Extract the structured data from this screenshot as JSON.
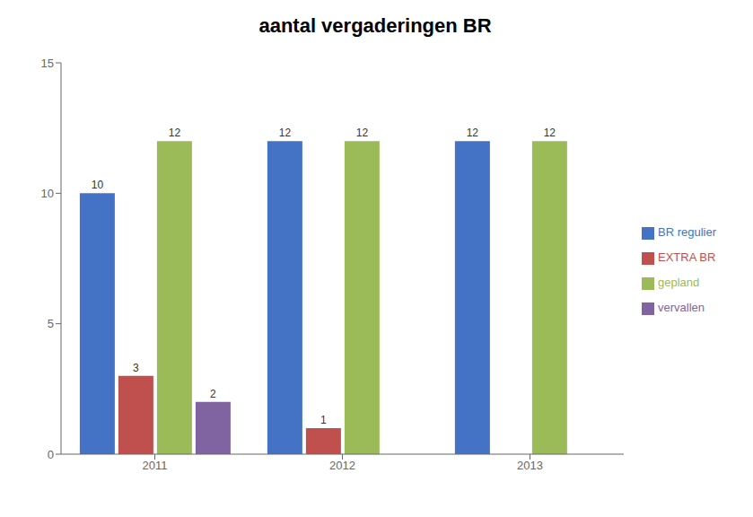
{
  "chart_data": {
    "type": "bar",
    "title": "aantal vergaderingen BR",
    "categories": [
      "2011",
      "2012",
      "2013"
    ],
    "series": [
      {
        "name": "BR regulier",
        "color": "#4472C4",
        "values": [
          10,
          12,
          12
        ]
      },
      {
        "name": "EXTRA BR",
        "color": "#C0504D",
        "values": [
          3,
          1,
          0
        ]
      },
      {
        "name": "gepland",
        "color": "#9BBB59",
        "values": [
          12,
          12,
          12
        ]
      },
      {
        "name": "vervallen",
        "color": "#8064A2",
        "values": [
          2,
          0,
          0
        ]
      }
    ],
    "ylim": [
      0,
      15
    ],
    "yticks": [
      0,
      5,
      10,
      15
    ],
    "data_labels": true,
    "legend": "right",
    "grid": false
  }
}
